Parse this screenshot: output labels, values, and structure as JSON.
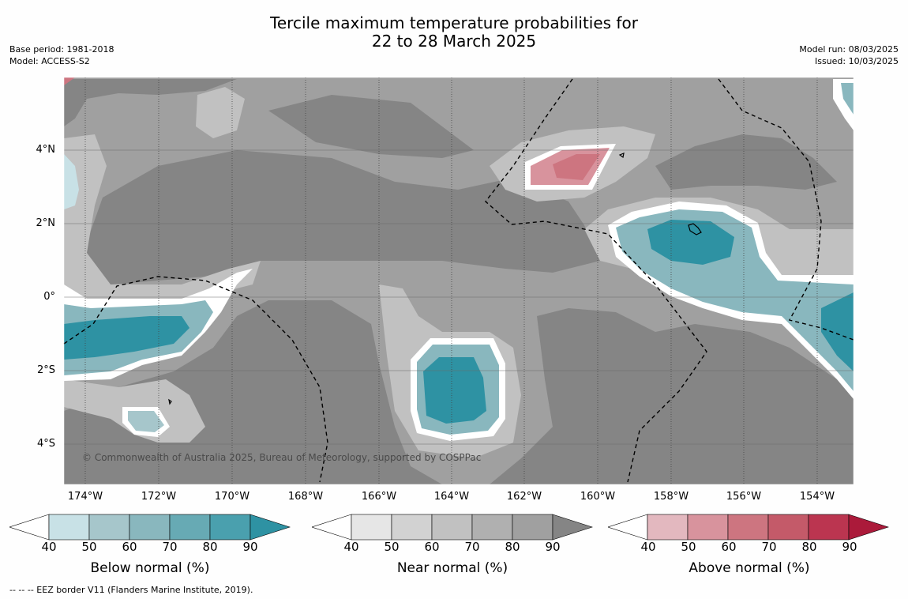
{
  "title_line1": "Tercile maximum temperature probabilities for",
  "title_line2": "22 to 28 March 2025",
  "meta_left": [
    "Base period: 1981-2018",
    "Model: ACCESS-S2"
  ],
  "meta_right": [
    "Model run: 08/03/2025",
    "Issued: 10/03/2025"
  ],
  "lat_labels": [
    "4°N",
    "2°N",
    "0°",
    "2°S",
    "4°S"
  ],
  "lon_labels": [
    "174°W",
    "172°W",
    "170°W",
    "168°W",
    "166°W",
    "164°W",
    "162°W",
    "160°W",
    "158°W",
    "156°W",
    "154°W"
  ],
  "copyright": "© Commonwealth of Australia 2025, Bureau of Meteorology, supported by COSPPac",
  "colorbars": [
    {
      "label": "Below normal (%)",
      "ticks": [
        "40",
        "50",
        "60",
        "70",
        "80",
        "90"
      ],
      "colors": [
        "#ffffff",
        "#c8e1e6",
        "#a6c6cb",
        "#89b7be",
        "#67aab4",
        "#4aa0ae",
        "#2e92a3"
      ]
    },
    {
      "label": "Near normal (%)",
      "ticks": [
        "40",
        "50",
        "60",
        "70",
        "80",
        "90"
      ],
      "colors": [
        "#ffffff",
        "#e6e6e6",
        "#d2d2d2",
        "#c1c1c1",
        "#b0b0b0",
        "#a0a0a0",
        "#858585"
      ]
    },
    {
      "label": "Above normal (%)",
      "ticks": [
        "40",
        "50",
        "60",
        "70",
        "80",
        "90"
      ],
      "colors": [
        "#ffffff",
        "#e3b8bf",
        "#d8939d",
        "#cd7580",
        "#c45a69",
        "#bb3550",
        "#ab1a3a"
      ]
    }
  ],
  "footnote": "--  --  -- EEZ border V11 (Flanders Marine Institute, 2019)."
}
